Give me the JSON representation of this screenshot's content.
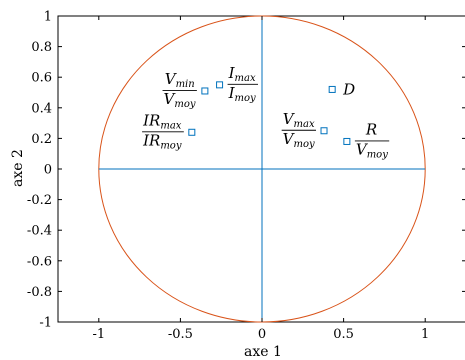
{
  "chart_data": {
    "type": "scatter",
    "title": "",
    "xlabel": "axe 1",
    "ylabel": "axe 2",
    "xlim": [
      -1.25,
      1.25
    ],
    "ylim": [
      -1,
      1
    ],
    "grid": false,
    "legend": "none",
    "x_ticks": [
      "-1",
      "-0.5",
      "0",
      "0.5",
      "1"
    ],
    "x_tick_values": [
      -1,
      -0.5,
      0,
      0.5,
      1
    ],
    "y_ticks": [
      "-1",
      "-0.8",
      "-0.6",
      "-0.4",
      "-0.2",
      "0",
      "0.2",
      "0.4",
      "0.6",
      "0.8",
      "1"
    ],
    "y_tick_values": [
      -1,
      -0.8,
      -0.6,
      -0.4,
      -0.2,
      0,
      0.2,
      0.4,
      0.6,
      0.8,
      1
    ],
    "unit_circle": true,
    "colors": {
      "points": "#0072bd",
      "axes_lines": "#0072bd",
      "circle": "#d95319",
      "frame": "#000000"
    },
    "points": [
      {
        "label_type": "fraction",
        "num": "V",
        "num_sub": "min",
        "den": "V",
        "den_sub": "moy",
        "x": -0.35,
        "y": 0.51,
        "label_side": "left"
      },
      {
        "label_type": "fraction",
        "num": "I",
        "num_sub": "max",
        "den": "I",
        "den_sub": "moy",
        "x": -0.26,
        "y": 0.55,
        "label_side": "right"
      },
      {
        "label_type": "fraction",
        "num": "IR",
        "num_sub": "max",
        "den": "IR",
        "den_sub": "moy",
        "x": -0.43,
        "y": 0.24,
        "label_side": "left"
      },
      {
        "label_type": "single",
        "text": "D",
        "x": 0.43,
        "y": 0.52,
        "label_side": "right"
      },
      {
        "label_type": "fraction",
        "num": "V",
        "num_sub": "max",
        "den": "V",
        "den_sub": "moy",
        "x": 0.38,
        "y": 0.25,
        "label_side": "left"
      },
      {
        "label_type": "fraction",
        "num": "R",
        "num_sub": "",
        "den": "V",
        "den_sub": "moy",
        "x": 0.52,
        "y": 0.18,
        "label_side": "right"
      }
    ]
  }
}
